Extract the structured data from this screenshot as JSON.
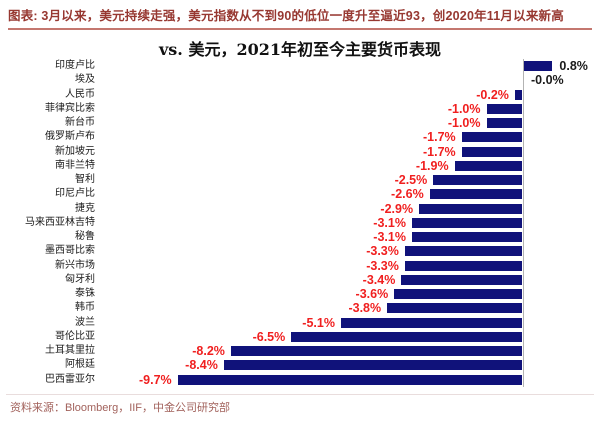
{
  "header": {
    "caption": "图表: 3月以来，美元持续走强，美元指数从不到90的低位一度升至逼近93，创2020年11月以来新高"
  },
  "chart_data": {
    "type": "bar",
    "orientation": "horizontal",
    "title": "vs. 美元，2021年初至今主要货币表现",
    "categories": [
      "印度卢比",
      "埃及",
      "人民币",
      "菲律宾比索",
      "新台币",
      "俄罗斯卢布",
      "新加坡元",
      "南非兰特",
      "智利",
      "印尼卢比",
      "捷克",
      "马来西亚林吉特",
      "秘鲁",
      "墨西哥比索",
      "新兴市场",
      "匈牙利",
      "泰铢",
      "韩币",
      "波兰",
      "哥伦比亚",
      "土耳其里拉",
      "阿根廷",
      "巴西雷亚尔"
    ],
    "values": [
      0.8,
      -0.0,
      -0.2,
      -1.0,
      -1.0,
      -1.7,
      -1.7,
      -1.9,
      -2.5,
      -2.6,
      -2.9,
      -3.1,
      -3.1,
      -3.3,
      -3.3,
      -3.4,
      -3.6,
      -3.8,
      -5.1,
      -6.5,
      -8.2,
      -8.4,
      -9.7
    ],
    "value_labels": [
      "0.8%",
      "-0.0%",
      "-0.2%",
      "-1.0%",
      "-1.0%",
      "-1.7%",
      "-1.7%",
      "-1.9%",
      "-2.5%",
      "-2.6%",
      "-2.9%",
      "-3.1%",
      "-3.1%",
      "-3.3%",
      "-3.3%",
      "-3.4%",
      "-3.6%",
      "-3.8%",
      "-5.1%",
      "-6.5%",
      "-8.2%",
      "-8.4%",
      "-9.7%"
    ],
    "unit": "%",
    "xlim": [
      -10,
      1
    ],
    "gridlines": false,
    "legend": false,
    "zero_axis_line": true
  },
  "footer": {
    "source": "资料来源：Bloomberg，IIF，中金公司研究部"
  },
  "colors": {
    "bar": "#10127a",
    "value_negative": "#f01f1f",
    "value_positive": "#1a1a1a",
    "caption_text": "#973831",
    "caption_underline": "#c4776f",
    "footer_text": "#a2625c",
    "footer_line": "#e9dddd",
    "zero_line": "#b3b3b3"
  }
}
